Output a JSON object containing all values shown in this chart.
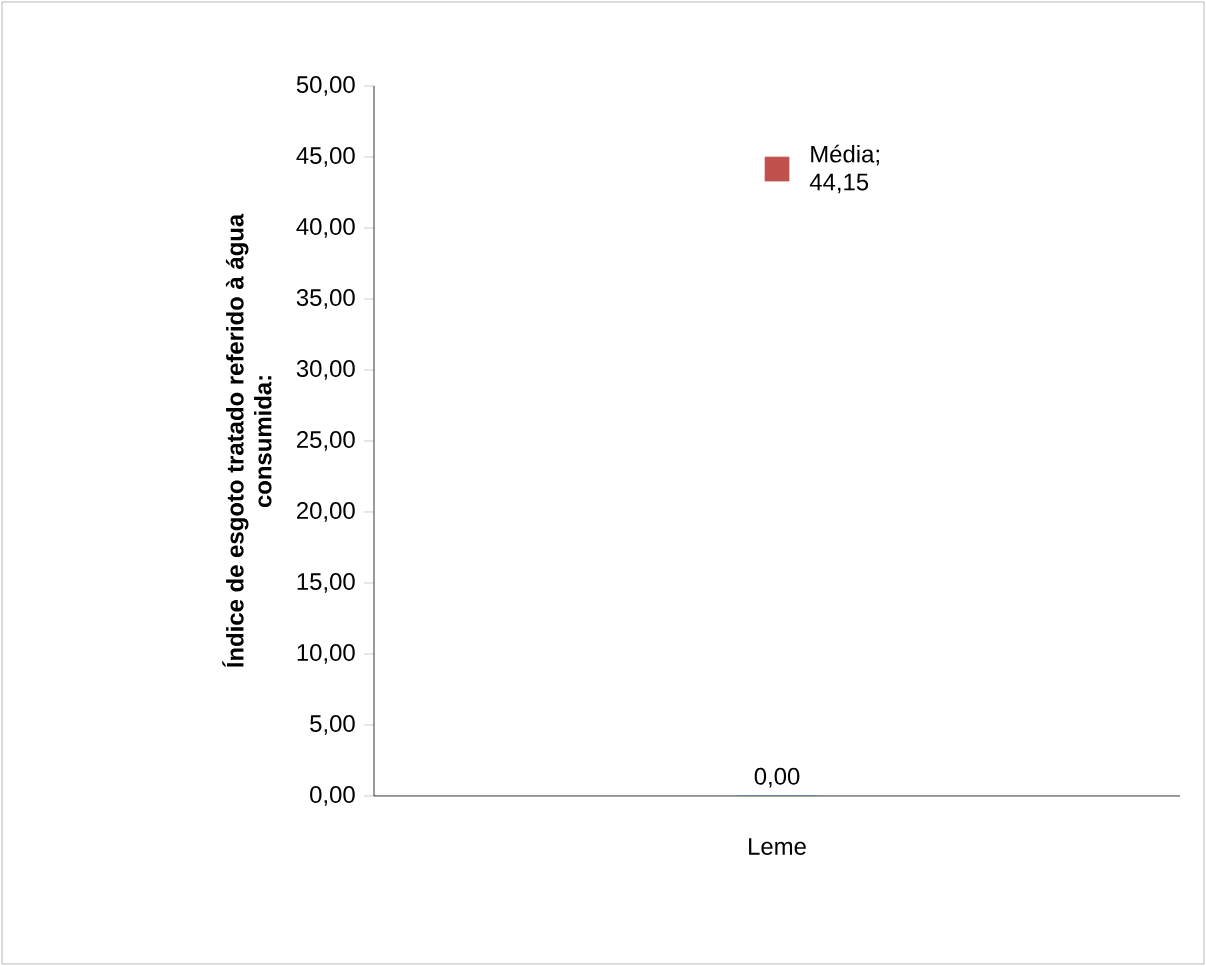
{
  "chart_data": {
    "type": "bar",
    "ylabel": "Índice de esgoto tratado referido à água consumida:",
    "categories": [
      "Leme"
    ],
    "series": [
      {
        "color": "#4f81bd",
        "values": [
          0
        ],
        "value_labels": [
          "0,00"
        ]
      },
      {
        "type": "scatter",
        "marker": "square",
        "color": "#c0504d",
        "values": [
          44.15
        ],
        "value_labels": [
          "Média; 44,15"
        ]
      }
    ],
    "ylim": [
      0,
      50
    ],
    "yticks": [
      {
        "value": 0,
        "label": "0,00"
      },
      {
        "value": 5,
        "label": "5,00"
      },
      {
        "value": 10,
        "label": "10,00"
      },
      {
        "value": 15,
        "label": "15,00"
      },
      {
        "value": 20,
        "label": "20,00"
      },
      {
        "value": 25,
        "label": "25,00"
      },
      {
        "value": 30,
        "label": "30,00"
      },
      {
        "value": 35,
        "label": "35,00"
      },
      {
        "value": 40,
        "label": "40,00"
      },
      {
        "value": 45,
        "label": "45,00"
      },
      {
        "value": 50,
        "label": "50,00"
      }
    ],
    "grid": false
  }
}
